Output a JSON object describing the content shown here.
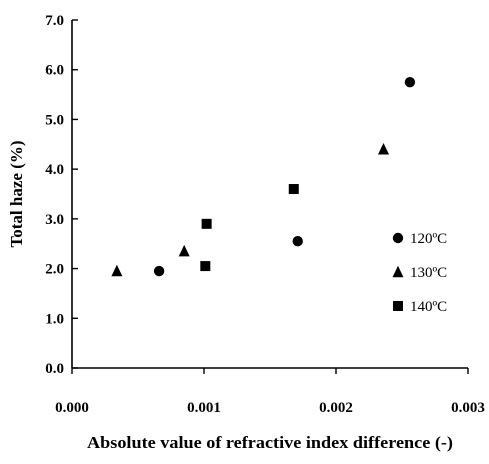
{
  "chart_data": {
    "type": "scatter",
    "title": "",
    "xlabel": "Absolute value of refractive index difference (-)",
    "ylabel": "Total haze (%)",
    "xlim": [
      0.0,
      0.003
    ],
    "ylim": [
      0.0,
      7.0
    ],
    "x_ticks": [
      "0.000",
      "0.001",
      "0.002",
      "0.003"
    ],
    "y_ticks": [
      "0.0",
      "1.0",
      "2.0",
      "3.0",
      "4.0",
      "5.0",
      "6.0",
      "7.0"
    ],
    "grid": false,
    "legend_position": "right",
    "series": [
      {
        "name": "120ºC",
        "marker": "circle",
        "points": [
          {
            "x": 0.00066,
            "y": 1.95
          },
          {
            "x": 0.00171,
            "y": 2.55
          },
          {
            "x": 0.00256,
            "y": 5.75
          }
        ]
      },
      {
        "name": "130ºC",
        "marker": "triangle",
        "points": [
          {
            "x": 0.00034,
            "y": 1.95
          },
          {
            "x": 0.00085,
            "y": 2.35
          },
          {
            "x": 0.00236,
            "y": 4.4
          }
        ]
      },
      {
        "name": "140ºC",
        "marker": "square",
        "points": [
          {
            "x": 0.00101,
            "y": 2.05
          },
          {
            "x": 0.00102,
            "y": 2.9
          },
          {
            "x": 0.00168,
            "y": 3.6
          }
        ]
      }
    ]
  }
}
